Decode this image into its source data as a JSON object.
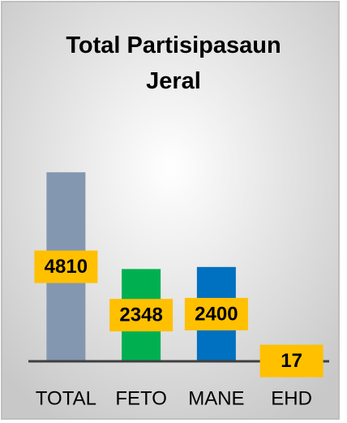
{
  "chart_data": {
    "type": "bar",
    "title": "Total Partisipasaun Jeral",
    "categories": [
      "TOTAL",
      "FETO",
      "MANE",
      "EHD"
    ],
    "values": [
      4810,
      2348,
      2400,
      17
    ],
    "colors": [
      "#8497b0",
      "#00b050",
      "#0070c0",
      "#ffc000"
    ],
    "label_color": "#ffc000",
    "ylim": [
      0,
      5000
    ]
  }
}
